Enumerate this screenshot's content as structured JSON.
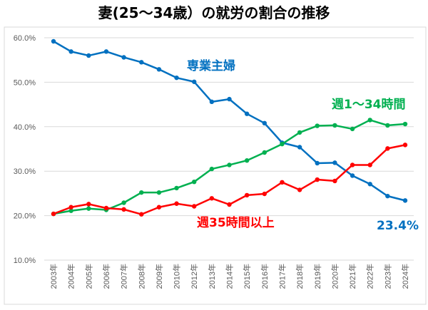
{
  "chart_data": {
    "type": "line",
    "title": "妻(25～34歳）の就労の割合の推移",
    "xlabel": "",
    "ylabel": "",
    "ylim": [
      10,
      60
    ],
    "yticks": [
      "10.0%",
      "20.0%",
      "30.0%",
      "40.0%",
      "50.0%",
      "60.0%"
    ],
    "grid": true,
    "categories": [
      "2003年",
      "2004年",
      "2005年",
      "2006年",
      "2007年",
      "2008年",
      "2009年",
      "2010年",
      "2012年",
      "2013年",
      "2014年",
      "2015年",
      "2016年",
      "2017年",
      "2018年",
      "2019年",
      "2020年",
      "2021年",
      "2022年",
      "2023年",
      "2024年"
    ],
    "series": [
      {
        "name": "専業主婦",
        "color": "#0070C0",
        "values": [
          59.2,
          56.9,
          56.0,
          56.9,
          55.6,
          54.5,
          52.9,
          51.0,
          50.1,
          45.6,
          46.2,
          42.9,
          40.8,
          36.4,
          35.4,
          31.8,
          31.9,
          29.0,
          27.1,
          24.4,
          23.4
        ]
      },
      {
        "name": "週1～34時間",
        "color": "#00B050",
        "values": [
          20.4,
          21.1,
          21.6,
          21.3,
          22.9,
          25.2,
          25.2,
          26.2,
          27.6,
          30.5,
          31.4,
          32.4,
          34.2,
          36.1,
          38.7,
          40.2,
          40.3,
          39.5,
          41.5,
          40.3,
          40.6
        ]
      },
      {
        "name": "週35時間以上",
        "color": "#FF0000",
        "values": [
          20.4,
          21.9,
          22.6,
          21.7,
          21.4,
          20.3,
          21.9,
          22.7,
          22.1,
          23.9,
          22.5,
          24.6,
          24.9,
          27.5,
          25.8,
          28.1,
          27.8,
          31.4,
          31.4,
          35.1,
          35.9
        ]
      }
    ],
    "annotations": [
      {
        "text": "23.4%",
        "color": "#0070C0"
      }
    ]
  }
}
